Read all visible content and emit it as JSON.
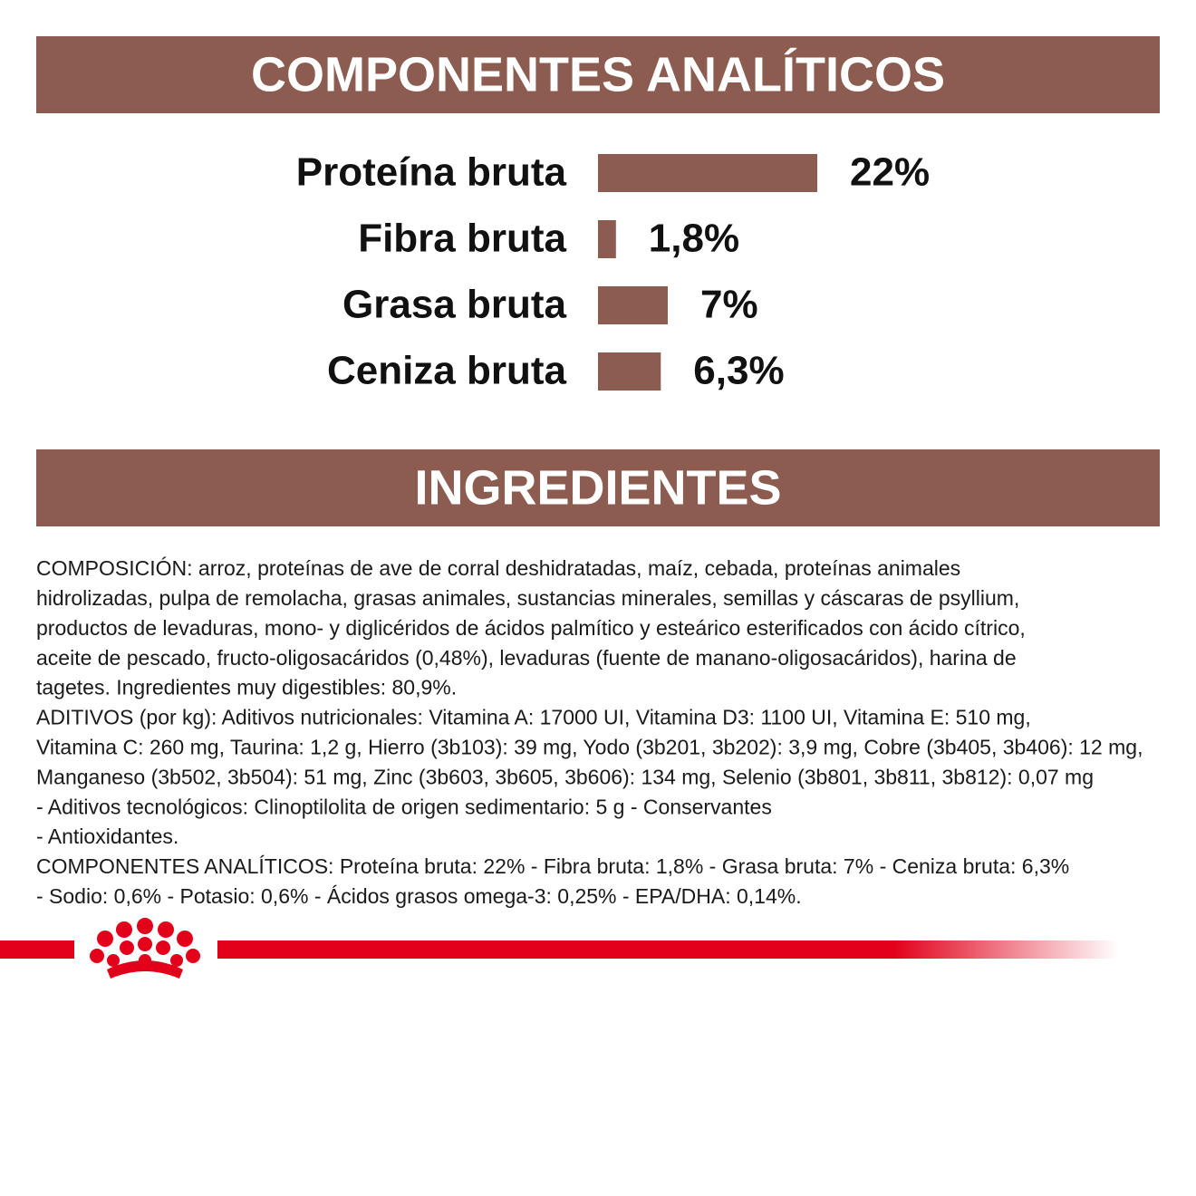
{
  "chart_data": {
    "type": "bar",
    "orientation": "horizontal",
    "title": "COMPONENTES ANALÍTICOS",
    "categories": [
      "Proteína bruta",
      "Fibra bruta",
      "Grasa bruta",
      "Ceniza bruta"
    ],
    "values": [
      22,
      1.8,
      7,
      6.3
    ],
    "value_labels": [
      "22%",
      "1,8%",
      "7%",
      "6,3%"
    ],
    "color": "#8b5c4f"
  },
  "ingredients": {
    "title": "INGREDIENTES",
    "lines": [
      "COMPOSICIÓN: arroz, proteínas de ave de corral deshidratadas, maíz, cebada, proteínas animales",
      "hidrolizadas, pulpa de remolacha, grasas animales, sustancias minerales, semillas y cáscaras de psyllium,",
      "productos de levaduras, mono- y diglicéridos de ácidos palmítico y esteárico esterificados con ácido cítrico,",
      "aceite de pescado, fructo-oligosacáridos (0,48%), levaduras (fuente de manano-oligosacáridos), harina de",
      "tagetes. Ingredientes muy digestibles: 80,9%.",
      "ADITIVOS (por kg): Aditivos nutricionales: Vitamina A: 17000 UI, Vitamina D3: 1100 UI, Vitamina E: 510 mg,",
      "Vitamina C: 260 mg, Taurina: 1,2 g, Hierro (3b103): 39 mg, Yodo (3b201, 3b202): 3,9 mg, Cobre (3b405, 3b406): 12 mg,",
      "Manganeso (3b502, 3b504): 51 mg, Zinc (3b603, 3b605, 3b606): 134 mg, Selenio (3b801, 3b811, 3b812): 0,07 mg",
      "- Aditivos tecnológicos: Clinoptilolita de origen sedimentario: 5 g - Conservantes",
      "- Antioxidantes.",
      "COMPONENTES ANALÍTICOS: Proteína bruta: 22% - Fibra bruta: 1,8% - Grasa bruta: 7% - Ceniza bruta: 6,3%",
      "- Sodio: 0,6% - Potasio: 0,6% - Ácidos grasos omega-3: 0,25% - EPA/DHA: 0,14%."
    ]
  }
}
